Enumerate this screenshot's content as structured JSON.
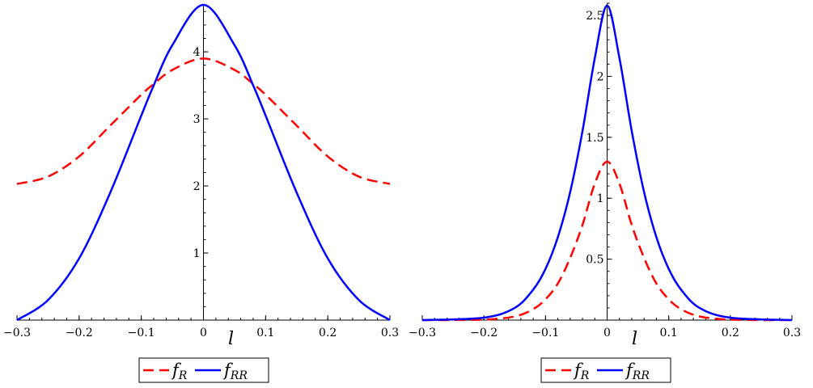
{
  "chart_data": [
    {
      "type": "line",
      "xlabel": "l",
      "ylabel": "",
      "xlim": [
        -0.3,
        0.3
      ],
      "ylim": [
        0,
        4.7
      ],
      "xticks": [
        -0.3,
        -0.2,
        -0.1,
        0,
        0.1,
        0.2,
        0.3
      ],
      "xtick_labels": [
        "−0.3",
        "−0.2",
        "−0.1",
        "0",
        "0.1",
        "0.2",
        "0.3"
      ],
      "yticks": [
        1,
        2,
        3,
        4
      ],
      "ytick_labels": [
        "1",
        "2",
        "3",
        "4"
      ],
      "legend": "bottom-center",
      "series": [
        {
          "name": "f_R",
          "label_main": "f",
          "label_sub": "R",
          "color": "#ff0000",
          "style": "dashed",
          "x": [
            -0.3,
            -0.25,
            -0.2,
            -0.15,
            -0.1,
            -0.08,
            -0.05,
            0,
            0.05,
            0.08,
            0.1,
            0.15,
            0.2,
            0.25,
            0.3
          ],
          "y": [
            2.03,
            2.14,
            2.44,
            2.9,
            3.36,
            3.52,
            3.73,
            3.9,
            3.73,
            3.52,
            3.36,
            2.9,
            2.44,
            2.14,
            2.03
          ]
        },
        {
          "name": "f_RR",
          "label_main": "f",
          "label_sub": "RR",
          "color": "#0000ff",
          "style": "solid",
          "x": [
            -0.3,
            -0.25,
            -0.2,
            -0.15,
            -0.1,
            -0.08,
            -0.05,
            0,
            0.05,
            0.08,
            0.1,
            0.15,
            0.2,
            0.25,
            0.3
          ],
          "y": [
            0.0,
            0.3,
            0.92,
            1.9,
            3.05,
            3.5,
            4.1,
            4.7,
            4.1,
            3.5,
            3.05,
            1.9,
            0.92,
            0.3,
            0.0
          ]
        }
      ]
    },
    {
      "type": "line",
      "xlabel": "l",
      "ylabel": "",
      "xlim": [
        -0.3,
        0.3
      ],
      "ylim": [
        0,
        2.6
      ],
      "xticks": [
        -0.3,
        -0.2,
        -0.1,
        0,
        0.1,
        0.2,
        0.3
      ],
      "xtick_labels": [
        "−0.3",
        "−0.2",
        "−0.1",
        "0",
        "0.1",
        "0.2",
        "0.3"
      ],
      "yticks": [
        0.5,
        1,
        1.5,
        2,
        2.5
      ],
      "ytick_labels": [
        "0.5",
        "1",
        "1.5",
        "2",
        "2.5"
      ],
      "legend": "bottom-center",
      "series": [
        {
          "name": "f_R",
          "label_main": "f",
          "label_sub": "R",
          "color": "#ff0000",
          "style": "dashed",
          "x": [
            -0.3,
            -0.2,
            -0.15,
            -0.12,
            -0.1,
            -0.08,
            -0.06,
            -0.04,
            -0.02,
            0,
            0.02,
            0.04,
            0.06,
            0.08,
            0.1,
            0.12,
            0.15,
            0.2,
            0.3
          ],
          "y": [
            0.0,
            0.004,
            0.03,
            0.09,
            0.17,
            0.3,
            0.51,
            0.78,
            1.12,
            1.3,
            1.12,
            0.78,
            0.51,
            0.3,
            0.17,
            0.09,
            0.03,
            0.004,
            0.0
          ]
        },
        {
          "name": "f_RR",
          "label_main": "f",
          "label_sub": "RR",
          "color": "#0000ff",
          "style": "solid",
          "x": [
            -0.3,
            -0.2,
            -0.15,
            -0.12,
            -0.1,
            -0.08,
            -0.06,
            -0.04,
            -0.02,
            0,
            0.02,
            0.04,
            0.06,
            0.08,
            0.1,
            0.12,
            0.15,
            0.2,
            0.3
          ],
          "y": [
            0.0,
            0.02,
            0.1,
            0.25,
            0.42,
            0.68,
            1.05,
            1.55,
            2.15,
            2.58,
            2.15,
            1.55,
            1.05,
            0.68,
            0.42,
            0.25,
            0.1,
            0.02,
            0.0
          ]
        }
      ]
    }
  ]
}
